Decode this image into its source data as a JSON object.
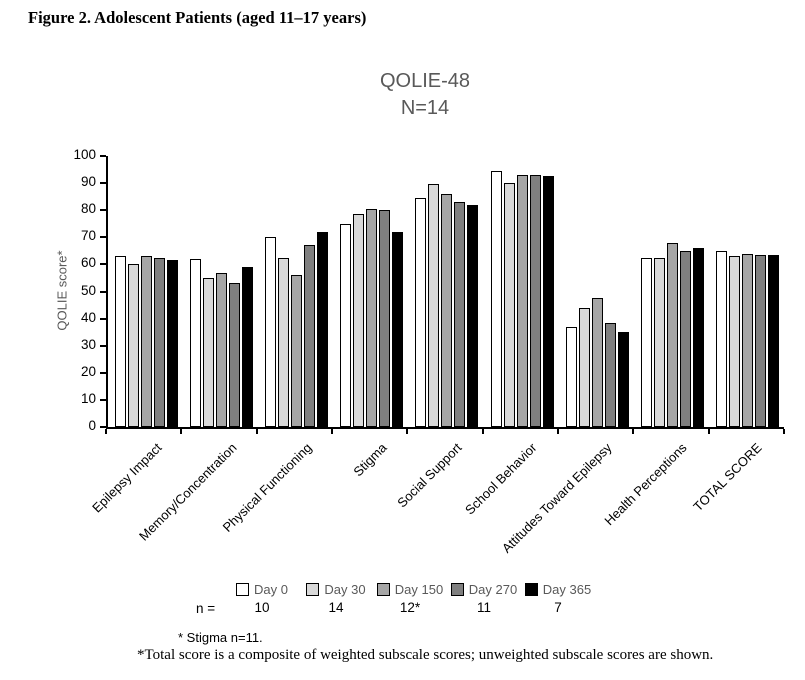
{
  "figure_title": "Figure 2. Adolescent Patients (aged 11–17 years)",
  "chart_data": {
    "type": "bar",
    "title": "QOLIE-48",
    "subtitle": "N=14",
    "ylabel": "QOLIE score*",
    "xlabel": "",
    "ylim": [
      0,
      100
    ],
    "ytick_step": 10,
    "grid": false,
    "legend_position": "bottom",
    "categories": [
      "Epilepsy Impact",
      "Memory/Concentration",
      "Physical Functioning",
      "Stigma",
      "Social Support",
      "School Behavior",
      "Attitudes Toward Epilepsy",
      "Health Perceptions",
      "TOTAL SCORE"
    ],
    "series": [
      {
        "name": "Day 0",
        "color": "#ffffff",
        "values": [
          63,
          62,
          70,
          75,
          84.5,
          94.5,
          37,
          62.5,
          65
        ]
      },
      {
        "name": "Day 30",
        "color": "#d9d9d9",
        "values": [
          60,
          55,
          62.5,
          78.5,
          89.5,
          90,
          44,
          62.5,
          63
        ]
      },
      {
        "name": "Day 150",
        "color": "#a6a6a6",
        "values": [
          63,
          57,
          56,
          80.5,
          86,
          93,
          47.5,
          68,
          64
        ]
      },
      {
        "name": "Day 270",
        "color": "#7f7f7f",
        "values": [
          62.5,
          53,
          67,
          80,
          83,
          93,
          38.5,
          65,
          63.5
        ]
      },
      {
        "name": "Day 365",
        "color": "#000000",
        "values": [
          61.5,
          59,
          72,
          72,
          82,
          92.5,
          35,
          66,
          63.5
        ]
      }
    ]
  },
  "n_row": {
    "label": "n =",
    "values": [
      "10",
      "14",
      "12*",
      "11",
      "7"
    ]
  },
  "footnotes": {
    "stigma": "* Stigma n=11.",
    "total": "*Total score is a composite of weighted subscale scores; unweighted subscale scores are shown."
  }
}
